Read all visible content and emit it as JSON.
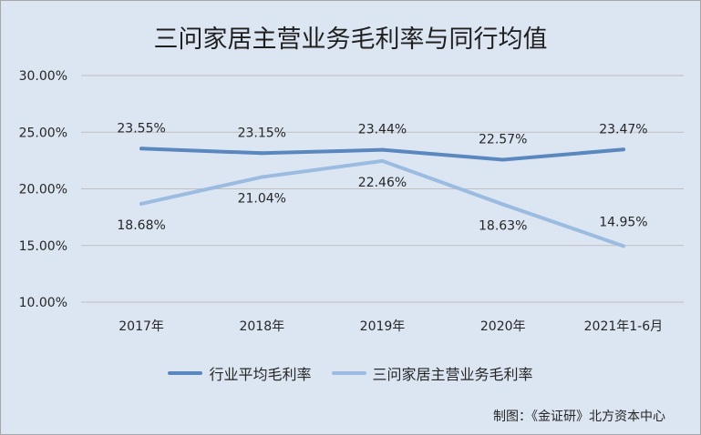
{
  "chart_data": {
    "type": "line",
    "title": "三问家居主营业务毛利率与同行均值",
    "categories": [
      "2017年",
      "2018年",
      "2019年",
      "2020年",
      "2021年1-6月"
    ],
    "ylim": [
      10,
      30
    ],
    "yticks": [
      "10.00%",
      "15.00%",
      "20.00%",
      "25.00%",
      "30.00%"
    ],
    "grid": true,
    "legend_position": "bottom",
    "series": [
      {
        "name": "行业平均毛利率",
        "values": [
          23.55,
          23.15,
          23.44,
          22.57,
          23.47
        ],
        "labels": [
          "23.55%",
          "23.15%",
          "23.44%",
          "22.57%",
          "23.47%"
        ],
        "color": "#5b87bf"
      },
      {
        "name": "三问家居主营业务毛利率",
        "values": [
          18.68,
          21.04,
          22.46,
          18.63,
          14.95
        ],
        "labels": [
          "18.68%",
          "21.04%",
          "22.46%",
          "18.63%",
          "14.95%"
        ],
        "color": "#9bbbe0"
      }
    ]
  },
  "credit": "制图：《金证研》北方资本中心"
}
